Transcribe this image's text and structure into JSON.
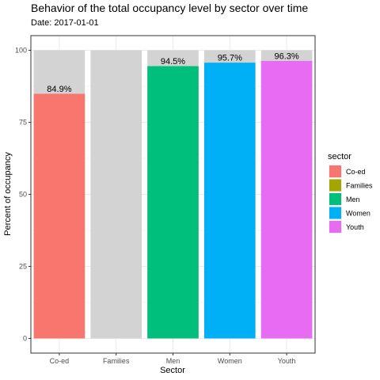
{
  "chart_data": {
    "type": "bar",
    "title": "Behavior of the total occupancy level by sector over time",
    "subtitle": "Date: 2017-01-01",
    "xlabel": "Sector",
    "ylabel": "Percent of occupancy",
    "categories": [
      "Co-ed",
      "Families",
      "Men",
      "Women",
      "Youth"
    ],
    "values": [
      84.9,
      0,
      94.5,
      95.7,
      96.3
    ],
    "value_labels": [
      "84.9%",
      "",
      "94.5%",
      "95.7%",
      "96.3%"
    ],
    "background_value": 100,
    "background_color": "#d3d3d3",
    "colors": [
      "#f8766d",
      "#a3a500",
      "#00bf7d",
      "#00b0f6",
      "#e76bf3"
    ],
    "ylim": [
      0,
      100
    ],
    "yticks": [
      0,
      25,
      50,
      75,
      100
    ],
    "grid": true,
    "legend": {
      "title": "sector",
      "position": "right",
      "items": [
        "Co-ed",
        "Families",
        "Men",
        "Women",
        "Youth"
      ]
    }
  }
}
